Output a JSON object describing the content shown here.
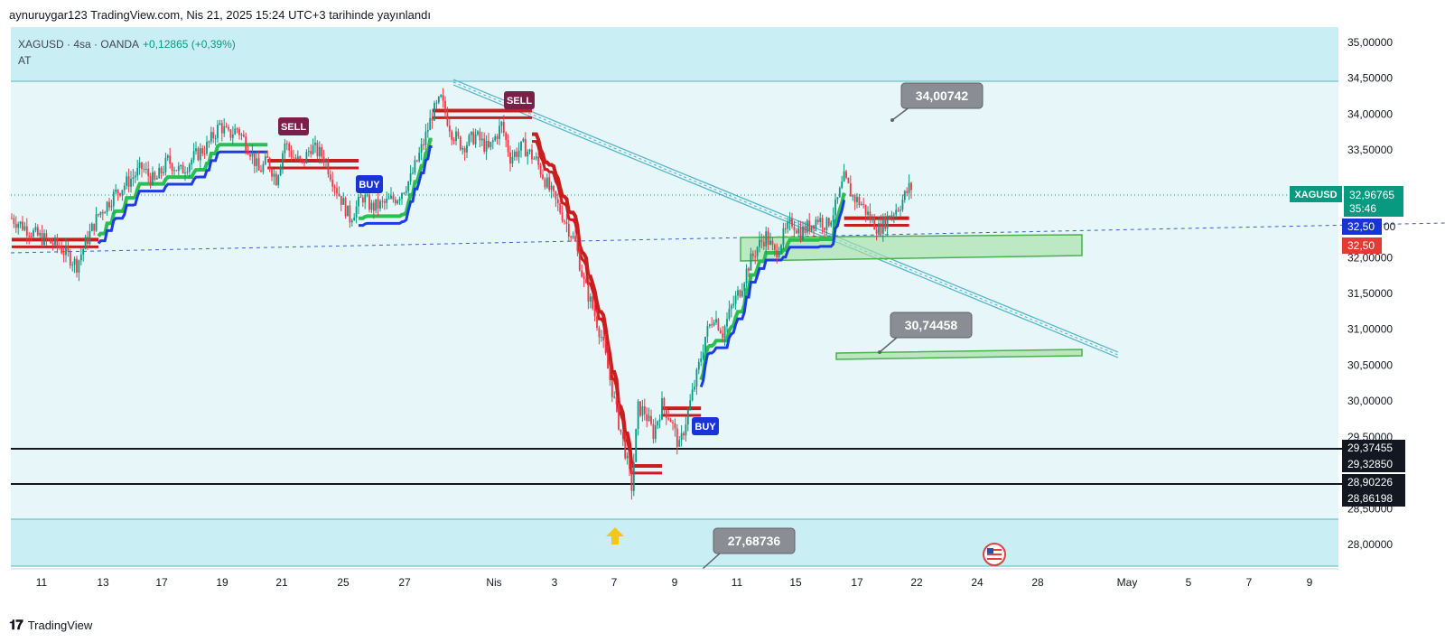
{
  "header": {
    "publish_line": "aynuruygar123 TradingView.com, Nis 21, 2025 15:24 UTC+3 tarihinde yayınlandı"
  },
  "legend": {
    "symbol": "XAGUSD · 4sa · OANDA",
    "change": "+0,12865 (+0,39%)",
    "indicator": "AT"
  },
  "colors": {
    "bull": "#089981",
    "bear": "#f23645",
    "up_band": "#1e3de0",
    "down_band": "#c81e1e",
    "zone_fill": "#c9eef3",
    "bg_band": "#e6f6f9",
    "green_box": "#a8e0a8"
  },
  "price_scale": {
    "labels": [
      "35,00000",
      "34,50000",
      "34,00000",
      "33,50000",
      "32,00000",
      "31,50000",
      "31,00000",
      "30,50000",
      "30,00000",
      "29,50000",
      "28,50000",
      "28,00000"
    ]
  },
  "price_badges": {
    "last_symbol": "XAGUSD",
    "last_price": "32,96765",
    "countdown": "35:46",
    "blue_level": "32,50",
    "red_level": "32,50",
    "level_29374": "29,37455",
    "level_29328": "29,32850",
    "level_28902": "28,90226",
    "level_28862": "28,86198",
    "cut_label": "00"
  },
  "time_axis": {
    "labels": [
      "11",
      "13",
      "17",
      "19",
      "21",
      "25",
      "27",
      "Nis",
      "3",
      "7",
      "9",
      "11",
      "15",
      "17",
      "22",
      "24",
      "28",
      "May",
      "5",
      "7",
      "9"
    ]
  },
  "annotations": {
    "target_top": "34,00742",
    "target_mid": "30,74458",
    "target_low": "27,68736",
    "signals": [
      {
        "text": "SELL"
      },
      {
        "text": "BUY"
      },
      {
        "text": "SELL"
      },
      {
        "text": "BUY"
      }
    ]
  },
  "footer": {
    "brand": "TradingView"
  },
  "chart_data": {
    "type": "candlestick",
    "symbol": "XAGUSD",
    "ylim": [
      27.6,
      35.4
    ],
    "x_axis": [
      "11",
      "13",
      "17",
      "19",
      "21",
      "25",
      "27",
      "Nis",
      "3",
      "7",
      "9",
      "11",
      "15",
      "17",
      "22",
      "24",
      "28",
      "May",
      "5",
      "7",
      "9"
    ],
    "horizontal_levels": [
      34.567,
      29.37455,
      28.90226,
      28.351
    ],
    "marked_prices": [
      34.00742,
      30.74458,
      27.68736,
      32.96765,
      32.5
    ],
    "path": [
      [
        0,
        32.55
      ],
      [
        12,
        32.3
      ],
      [
        22,
        32.15
      ],
      [
        30,
        31.9
      ],
      [
        34,
        32.2
      ],
      [
        40,
        32.6
      ],
      [
        48,
        32.9
      ],
      [
        55,
        33.1
      ],
      [
        60,
        33.25
      ],
      [
        66,
        33.05
      ],
      [
        72,
        33.35
      ],
      [
        78,
        33.2
      ],
      [
        84,
        33.4
      ],
      [
        90,
        33.55
      ],
      [
        96,
        33.85
      ],
      [
        100,
        33.7
      ],
      [
        104,
        33.8
      ],
      [
        110,
        33.5
      ],
      [
        114,
        33.2
      ],
      [
        118,
        33.35
      ],
      [
        122,
        33.1
      ],
      [
        126,
        33.6
      ],
      [
        130,
        33.4
      ],
      [
        134,
        33.3
      ],
      [
        138,
        33.55
      ],
      [
        144,
        33.4
      ],
      [
        150,
        32.95
      ],
      [
        156,
        32.55
      ],
      [
        162,
        32.85
      ],
      [
        166,
        32.7
      ],
      [
        172,
        32.75
      ],
      [
        178,
        32.85
      ],
      [
        184,
        33.1
      ],
      [
        190,
        33.6
      ],
      [
        194,
        34.0
      ],
      [
        198,
        34.2
      ],
      [
        203,
        33.75
      ],
      [
        208,
        33.55
      ],
      [
        214,
        33.7
      ],
      [
        220,
        33.5
      ],
      [
        226,
        33.85
      ],
      [
        230,
        33.4
      ],
      [
        236,
        33.55
      ],
      [
        242,
        33.35
      ],
      [
        248,
        32.95
      ],
      [
        254,
        32.6
      ],
      [
        260,
        32.2
      ],
      [
        264,
        31.65
      ],
      [
        268,
        31.3
      ],
      [
        272,
        30.9
      ],
      [
        276,
        30.3
      ],
      [
        280,
        29.7
      ],
      [
        283,
        29.3
      ],
      [
        286,
        28.8
      ],
      [
        289,
        29.9
      ],
      [
        292,
        29.85
      ],
      [
        296,
        29.55
      ],
      [
        300,
        29.95
      ],
      [
        304,
        29.75
      ],
      [
        308,
        29.35
      ],
      [
        312,
        29.85
      ],
      [
        316,
        30.35
      ],
      [
        320,
        30.9
      ],
      [
        324,
        31.2
      ],
      [
        328,
        30.95
      ],
      [
        332,
        31.3
      ],
      [
        336,
        31.55
      ],
      [
        340,
        31.9
      ],
      [
        344,
        32.15
      ],
      [
        348,
        32.3
      ],
      [
        352,
        32.05
      ],
      [
        356,
        32.3
      ],
      [
        360,
        32.5
      ],
      [
        364,
        32.35
      ],
      [
        368,
        32.45
      ],
      [
        372,
        32.55
      ],
      [
        376,
        32.45
      ],
      [
        380,
        32.7
      ],
      [
        384,
        33.1
      ],
      [
        388,
        32.85
      ],
      [
        392,
        32.75
      ],
      [
        396,
        32.55
      ],
      [
        400,
        32.4
      ],
      [
        404,
        32.55
      ],
      [
        410,
        32.75
      ],
      [
        414,
        32.97
      ]
    ]
  }
}
